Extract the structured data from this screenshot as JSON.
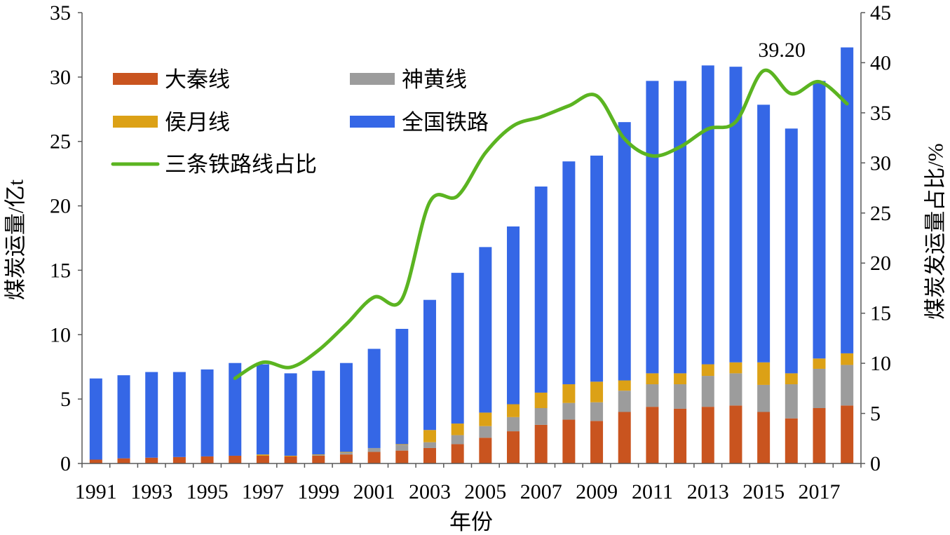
{
  "chart_data": {
    "type": "bar",
    "stacked": true,
    "x": [
      1991,
      1992,
      1993,
      1994,
      1995,
      1996,
      1997,
      1998,
      1999,
      2000,
      2001,
      2002,
      2003,
      2004,
      2005,
      2006,
      2007,
      2008,
      2009,
      2010,
      2011,
      2012,
      2013,
      2014,
      2015,
      2016,
      2017,
      2018
    ],
    "x_ticks": [
      1991,
      1993,
      1995,
      1997,
      1999,
      2001,
      2003,
      2005,
      2007,
      2009,
      2011,
      2013,
      2015,
      2017
    ],
    "xlabel": "年份",
    "ylabel": "煤炭运量/亿t",
    "y2label": "煤炭发运量占比/%",
    "ylim": [
      0,
      35
    ],
    "y2lim": [
      0,
      45
    ],
    "y_ticks": [
      0,
      5,
      10,
      15,
      20,
      25,
      30,
      35
    ],
    "y2_ticks": [
      0,
      5,
      10,
      15,
      20,
      25,
      30,
      35,
      40,
      45
    ],
    "grid": false,
    "legend": "top-left",
    "series": [
      {
        "name": "大秦线",
        "type": "bar",
        "color": "#C9541F",
        "values": [
          0.3,
          0.4,
          0.45,
          0.5,
          0.55,
          0.6,
          0.6,
          0.55,
          0.6,
          0.7,
          0.9,
          1.0,
          1.2,
          1.5,
          2.0,
          2.5,
          3.0,
          3.4,
          3.3,
          4.0,
          4.4,
          4.25,
          4.4,
          4.5,
          4.0,
          3.5,
          4.3,
          4.5
        ]
      },
      {
        "name": "神黄线",
        "type": "bar",
        "color": "#9C9C9C",
        "values": [
          0,
          0,
          0,
          0,
          0,
          0,
          0,
          0,
          0.05,
          0.15,
          0.3,
          0.45,
          0.45,
          0.7,
          0.9,
          1.1,
          1.3,
          1.3,
          1.45,
          1.65,
          1.75,
          1.9,
          2.4,
          2.5,
          2.1,
          2.65,
          3.05,
          3.15
        ]
      },
      {
        "name": "侯月线",
        "type": "bar",
        "color": "#DCA116",
        "values": [
          0,
          0,
          0,
          0,
          0,
          0,
          0.1,
          0.05,
          0.05,
          0.05,
          0,
          0.05,
          0.95,
          0.9,
          1.05,
          1.0,
          1.2,
          1.45,
          1.6,
          0.8,
          0.85,
          0.85,
          0.9,
          0.85,
          1.75,
          0.85,
          0.8,
          0.9
        ]
      },
      {
        "name": "全国铁路",
        "type": "bar",
        "color": "#3567E6",
        "values": [
          6.3,
          6.45,
          6.65,
          6.6,
          6.75,
          7.2,
          7.0,
          6.4,
          6.5,
          6.9,
          7.7,
          8.95,
          10.1,
          11.7,
          12.85,
          13.8,
          16.0,
          17.3,
          17.55,
          20.05,
          22.7,
          22.7,
          23.2,
          22.95,
          20.0,
          19.0,
          21.55,
          23.75
        ]
      },
      {
        "name": "三条铁路线占比",
        "type": "line",
        "y_axis": "right",
        "color": "#5BB421",
        "values": [
          null,
          null,
          null,
          null,
          null,
          8.5,
          10.1,
          9.6,
          11.3,
          13.9,
          16.6,
          16.4,
          26.1,
          26.7,
          31.0,
          33.7,
          34.6,
          35.7,
          36.7,
          32.4,
          30.7,
          31.6,
          33.4,
          34.1,
          39.2,
          36.9,
          38.1,
          35.9
        ]
      }
    ],
    "annotations": [
      {
        "text": "39.20",
        "x": 2015,
        "y": 39.2
      }
    ]
  }
}
